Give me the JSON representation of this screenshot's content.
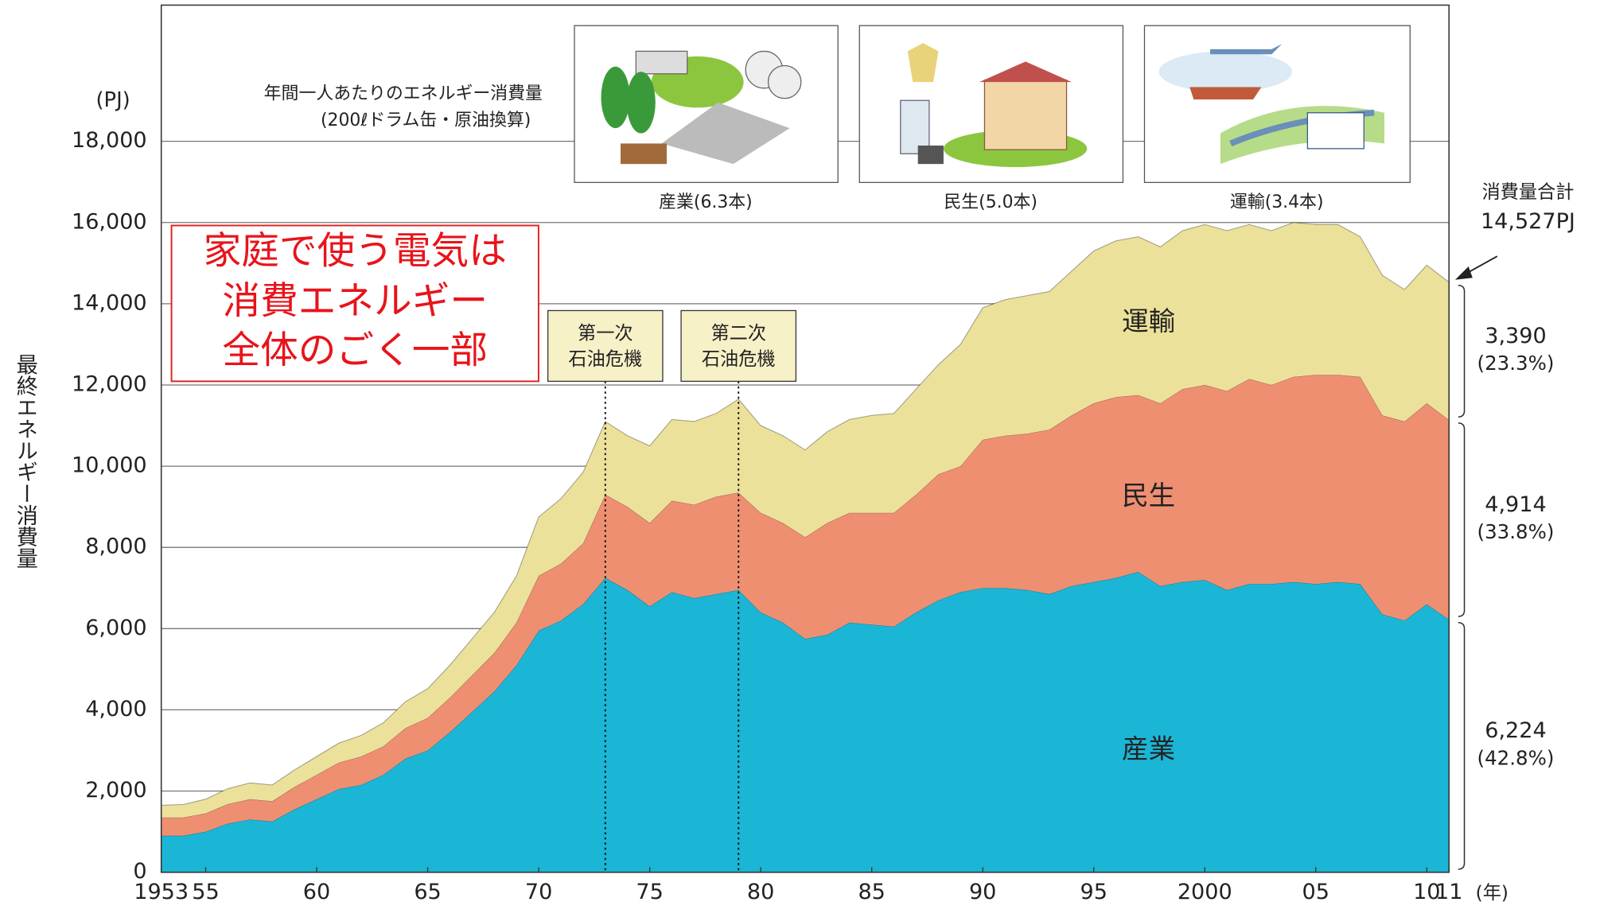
{
  "chart_data": {
    "type": "stacked_area",
    "y_title": "最終エネルギー消費量",
    "y_unit": "(PJ)",
    "x_unit": "(年)",
    "panel_heading": [
      "年間一人あたりのエネルギー消費量",
      "(200ℓドラム缶・原油換算)"
    ],
    "panels": [
      "産業(6.3本)",
      "民生(5.0本)",
      "運輸(3.4本)"
    ],
    "note": [
      "家庭で使う電気は",
      "消費エネルギー",
      "全体のごく一部"
    ],
    "events": [
      {
        "x": 1973,
        "lines": [
          "第一次",
          "石油危機"
        ]
      },
      {
        "x": 1979,
        "lines": [
          "第二次",
          "石油危機"
        ]
      }
    ],
    "total_label": "消費量合計",
    "total_value_label": "14,527PJ",
    "x": [
      1953,
      1954,
      1955,
      1956,
      1957,
      1958,
      1959,
      1960,
      1961,
      1962,
      1963,
      1964,
      1965,
      1966,
      1967,
      1968,
      1969,
      1970,
      1971,
      1972,
      1973,
      1974,
      1975,
      1976,
      1977,
      1978,
      1979,
      1980,
      1981,
      1982,
      1983,
      1984,
      1985,
      1986,
      1987,
      1988,
      1989,
      1990,
      1991,
      1992,
      1993,
      1994,
      1995,
      1996,
      1997,
      1998,
      1999,
      2000,
      2001,
      2002,
      2003,
      2004,
      2005,
      2006,
      2007,
      2008,
      2009,
      2010,
      2011
    ],
    "series": [
      {
        "name": "産業",
        "color": "#1bb6d6",
        "end_label": "6,224",
        "end_share": "(42.8%)",
        "values": [
          900,
          900,
          1000,
          1200,
          1300,
          1250,
          1550,
          1800,
          2050,
          2150,
          2400,
          2800,
          3000,
          3450,
          3950,
          4450,
          5100,
          5950,
          6200,
          6600,
          7250,
          6950,
          6550,
          6900,
          6750,
          6850,
          6950,
          6400,
          6150,
          5750,
          5850,
          6150,
          6100,
          6050,
          6400,
          6700,
          6900,
          7000,
          7000,
          6950,
          6850,
          7050,
          7150,
          7250,
          7400,
          7050,
          7150,
          7200,
          6950,
          7100,
          7100,
          7150,
          7100,
          7150,
          7100,
          6350,
          6200,
          6600,
          6224
        ]
      },
      {
        "name": "民生",
        "color": "#ef8f72",
        "end_label": "4,914",
        "end_share": "(33.8%)",
        "values": [
          450,
          450,
          450,
          480,
          500,
          500,
          550,
          600,
          650,
          700,
          700,
          750,
          800,
          850,
          900,
          950,
          1050,
          1350,
          1400,
          1500,
          2050,
          2050,
          2050,
          2250,
          2300,
          2400,
          2400,
          2450,
          2450,
          2500,
          2750,
          2700,
          2750,
          2800,
          2900,
          3100,
          3100,
          3650,
          3750,
          3850,
          4050,
          4200,
          4400,
          4450,
          4350,
          4500,
          4750,
          4800,
          4900,
          5050,
          4900,
          5050,
          5150,
          5100,
          5100,
          4900,
          4900,
          4950,
          4914
        ]
      },
      {
        "name": "運輸",
        "color": "#ece19a",
        "end_label": "3,390",
        "end_share": "(23.3%)",
        "values": [
          300,
          320,
          350,
          380,
          400,
          400,
          420,
          450,
          480,
          520,
          580,
          650,
          720,
          800,
          900,
          1000,
          1150,
          1450,
          1600,
          1750,
          1800,
          1750,
          1900,
          2000,
          2050,
          2050,
          2300,
          2150,
          2150,
          2150,
          2250,
          2300,
          2400,
          2450,
          2600,
          2700,
          3000,
          3250,
          3350,
          3400,
          3400,
          3550,
          3750,
          3850,
          3900,
          3850,
          3900,
          3950,
          3950,
          3800,
          3800,
          3800,
          3700,
          3700,
          3450,
          3450,
          3250,
          3400,
          3390
        ]
      }
    ],
    "xlim": [
      1953,
      2011
    ],
    "xticks": [
      1953,
      {
        "value": 1955,
        "label": "55"
      },
      {
        "value": 1960,
        "label": "60"
      },
      {
        "value": 1965,
        "label": "65"
      },
      {
        "value": 1970,
        "label": "70"
      },
      {
        "value": 1975,
        "label": "75"
      },
      {
        "value": 1980,
        "label": "80"
      },
      {
        "value": 1985,
        "label": "85"
      },
      {
        "value": 1990,
        "label": "90"
      },
      {
        "value": 1995,
        "label": "95"
      },
      2000,
      {
        "value": 2005,
        "label": "05"
      },
      {
        "value": 2010,
        "label": "10"
      },
      {
        "value": 2011,
        "label": "11"
      }
    ],
    "ylim": [
      0,
      21000
    ],
    "yticks": [
      0,
      {
        "value": 2000,
        "label": "2,000"
      },
      {
        "value": 4000,
        "label": "4,000"
      },
      {
        "value": 6000,
        "label": "6,000"
      },
      {
        "value": 8000,
        "label": "8,000"
      },
      {
        "value": 10000,
        "label": "10,000"
      },
      {
        "value": 12000,
        "label": "12,000"
      },
      {
        "value": 14000,
        "label": "14,000"
      },
      {
        "value": 16000,
        "label": "16,000"
      },
      {
        "value": 18000,
        "label": "18,000"
      }
    ],
    "grid": true
  }
}
